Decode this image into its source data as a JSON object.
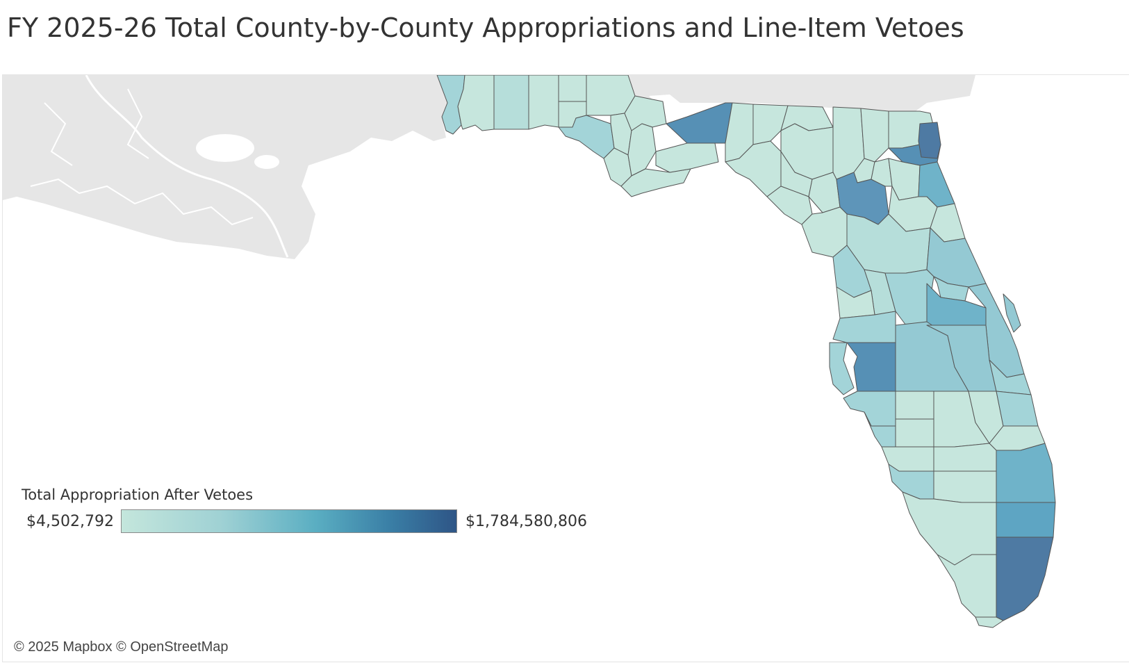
{
  "title": "FY 2025-26 Total County-by-County Appropriations and Line-Item Vetoes",
  "legend": {
    "title": "Total Appropriation After Vetoes",
    "min_label": "$4,502,792",
    "max_label": "$1,784,580,806",
    "min_value": 4502792,
    "max_value": 1784580806,
    "gradient_colors": [
      "#c4e6dc",
      "#9fd1d4",
      "#5aaec2",
      "#3a7fa6",
      "#2e5586"
    ]
  },
  "attribution": "© 2025 Mapbox © OpenStreetMap",
  "colors": {
    "land_background": "#e6e6e6",
    "water": "#ffffff",
    "county_border": "#555555",
    "level_1": "#c6e6dd",
    "level_2": "#b6deda",
    "level_3": "#a3d4d8",
    "level_4": "#94c9d3",
    "level_5": "#6fb3c9",
    "level_6": "#5ea5c3",
    "level_7": "#5690b5",
    "level_8": "#4e7aa3",
    "level_9": "#4a6f96"
  }
}
